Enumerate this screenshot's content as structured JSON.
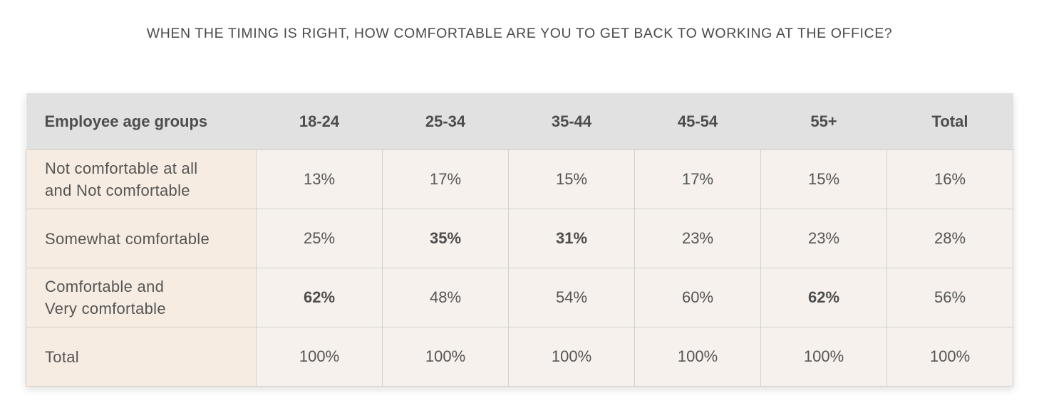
{
  "chart_data": {
    "type": "table",
    "title": "WHEN THE TIMING IS RIGHT, HOW COMFORTABLE ARE YOU TO GET BACK TO WORKING AT THE OFFICE?",
    "row_header_label": "Employee age groups",
    "columns": [
      "18-24",
      "25-34",
      "35-44",
      "45-54",
      "55+",
      "Total"
    ],
    "rows": [
      {
        "label_lines": [
          "Not comfortable at all",
          "and Not comfortable"
        ],
        "values": [
          "13%",
          "17%",
          "15%",
          "17%",
          "15%",
          "16%"
        ],
        "bold": [
          false,
          false,
          false,
          false,
          false,
          false
        ]
      },
      {
        "label_lines": [
          "Somewhat comfortable"
        ],
        "values": [
          "25%",
          "35%",
          "31%",
          "23%",
          "23%",
          "28%"
        ],
        "bold": [
          false,
          true,
          true,
          false,
          false,
          false
        ]
      },
      {
        "label_lines": [
          "Comfortable and",
          "Very comfortable"
        ],
        "values": [
          "62%",
          "48%",
          "54%",
          "60%",
          "62%",
          "56%"
        ],
        "bold": [
          true,
          false,
          false,
          false,
          true,
          false
        ]
      },
      {
        "label_lines": [
          "Total"
        ],
        "values": [
          "100%",
          "100%",
          "100%",
          "100%",
          "100%",
          "100%"
        ],
        "bold": [
          false,
          false,
          false,
          false,
          false,
          false
        ]
      }
    ],
    "colors": {
      "header_bg": "#e1e1e1",
      "row_label_bg": "#f6ece2",
      "cell_bg": "#f6f1ec",
      "border": "#d3d0cc",
      "text": "#555555"
    }
  }
}
